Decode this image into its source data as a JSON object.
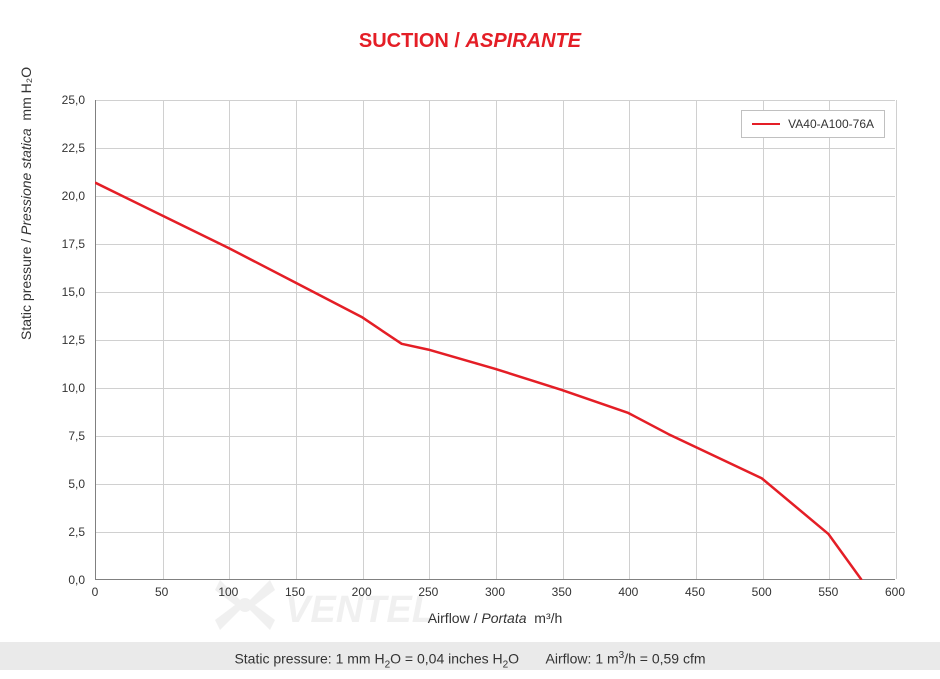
{
  "title": {
    "left": "SUCTION",
    "sep": " / ",
    "right": "ASPIRANTE"
  },
  "chart": {
    "type": "line",
    "series_label": "VA40-A100-76A",
    "line_color": "#e41e26",
    "line_width": 2.5,
    "background_color": "#ffffff",
    "grid_color": "#d0d0d0",
    "axis_color": "#808080",
    "xlim": [
      0,
      600
    ],
    "ylim": [
      0,
      25
    ],
    "xtick_step": 50,
    "ytick_step": 2.5,
    "xticks": [
      "0",
      "50",
      "100",
      "150",
      "200",
      "250",
      "300",
      "350",
      "400",
      "450",
      "500",
      "550",
      "600"
    ],
    "yticks": [
      "0,0",
      "2,5",
      "5,0",
      "7,5",
      "10,0",
      "12,5",
      "15,0",
      "17,5",
      "20,0",
      "22,5",
      "25,0"
    ],
    "xlabel_plain": "Airflow",
    "xlabel_italic": "Portata",
    "xlabel_unit": "m³/h",
    "ylabel_plain": "Static pressure",
    "ylabel_italic": "Pressione statica",
    "ylabel_unit": "mm  H₂O",
    "label_fontsize": 14,
    "tick_fontsize": 12,
    "data": {
      "x": [
        0,
        50,
        100,
        150,
        200,
        230,
        250,
        300,
        350,
        400,
        430,
        500,
        550,
        575
      ],
      "y": [
        20.7,
        19.0,
        17.3,
        15.5,
        13.7,
        12.3,
        12.0,
        11.0,
        9.9,
        8.7,
        7.6,
        5.3,
        2.4,
        0.0
      ]
    }
  },
  "footer": {
    "static_label": "Static pressure: 1 mm H",
    "static_sub": "2",
    "static_rest": "O = 0,04 inches H",
    "static_sub2": "2",
    "static_end": "O",
    "airflow_label": "Airflow: 1 m",
    "airflow_sup": "3",
    "airflow_rest": "/h = 0,59 cfm"
  },
  "watermark": {
    "text": "VENTEL"
  }
}
